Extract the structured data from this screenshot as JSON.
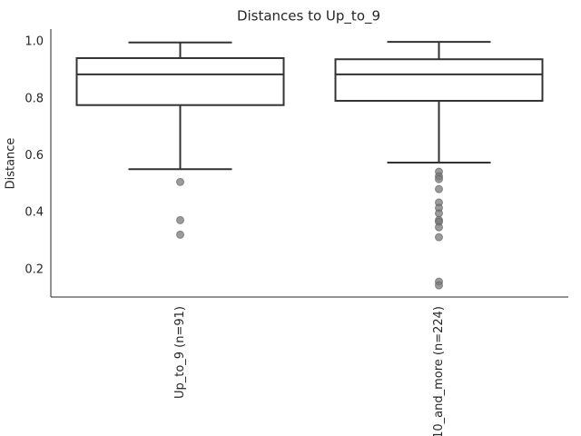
{
  "chart_data": {
    "type": "box",
    "title": "Distances to Up_to_9",
    "y_label": "Distance",
    "categories": [
      "Up_to_9 (n=91)",
      "10_and_more (n=224)"
    ],
    "boxes": [
      {
        "whisker_low": 0.553,
        "q1": 0.778,
        "median": 0.886,
        "q3": 0.943,
        "whisker_high": 0.998,
        "outliers": [
          0.508,
          0.374,
          0.323
        ]
      },
      {
        "whisker_low": 0.576,
        "q1": 0.793,
        "median": 0.886,
        "q3": 0.939,
        "whisker_high": 1,
        "outliers": [
          0.544,
          0.528,
          0.518,
          0.483,
          0.436,
          0.417,
          0.398,
          0.374,
          0.368,
          0.349,
          0.314,
          0.158,
          0.145
        ]
      }
    ],
    "box_color": "#ffffff",
    "line_color": "#333333",
    "outlier_color": "#7a7a7a",
    "ylim": [
      0.104,
      1.045
    ],
    "yticks": [
      0.2,
      0.4,
      0.6,
      0.8,
      {
        "value": 1,
        "label": "1.0"
      }
    ]
  }
}
